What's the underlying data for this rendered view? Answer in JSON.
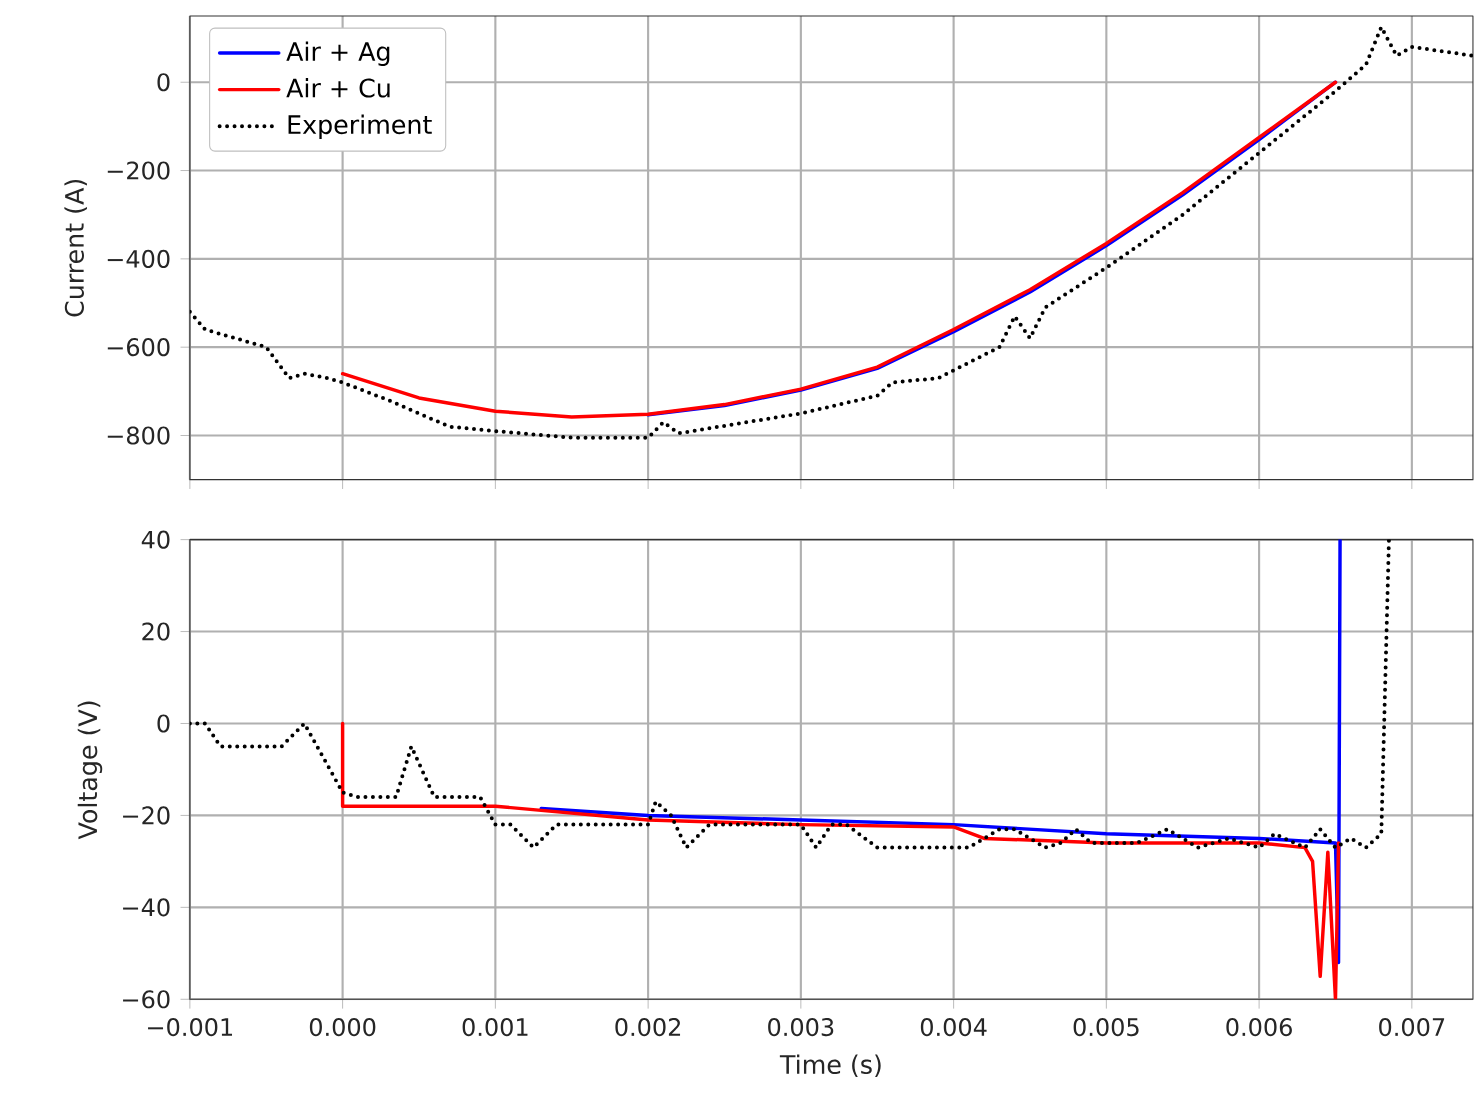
{
  "chart_data": [
    {
      "type": "line",
      "ylabel": "Current (A)",
      "xlim": [
        -0.001,
        0.0074
      ],
      "ylim": [
        -900,
        150
      ],
      "xticks": [
        {
          "value": -0.001,
          "label": null
        },
        {
          "value": 0,
          "label": null
        },
        {
          "value": 0.001,
          "label": null
        },
        {
          "value": 0.002,
          "label": null
        },
        {
          "value": 0.003,
          "label": null
        },
        {
          "value": 0.004,
          "label": null
        },
        {
          "value": 0.005,
          "label": null
        },
        {
          "value": 0.006,
          "label": null
        },
        {
          "value": 0.007,
          "label": null
        }
      ],
      "yticks": [
        {
          "value": -800,
          "label": "−800"
        },
        {
          "value": -600,
          "label": "−600"
        },
        {
          "value": -400,
          "label": "−400"
        },
        {
          "value": -200,
          "label": "−200"
        },
        0
      ],
      "tick_labels": "y",
      "grid": true,
      "legend": "top left",
      "line_style": "solid",
      "marker": "none",
      "series": [
        {
          "name": "Air + Ag",
          "color": "#0000ff",
          "x": [
            0.002,
            0.0025,
            0.003,
            0.0035,
            0.004,
            0.0045,
            0.005,
            0.0055,
            0.006,
            0.0065
          ],
          "values": [
            -753,
            -732,
            -697,
            -648,
            -565,
            -475,
            -370,
            -255,
            -130,
            0
          ]
        },
        {
          "name": "Air + Cu",
          "color": "#ff0000",
          "x": [
            0,
            0.0005,
            0.001,
            0.0015,
            0.002,
            0.0025,
            0.003,
            0.0035,
            0.004,
            0.0045,
            0.005,
            0.0055,
            0.006,
            0.0065
          ],
          "values": [
            -660,
            -715,
            -745,
            -758,
            -752,
            -730,
            -695,
            -645,
            -560,
            -470,
            -365,
            -250,
            -125,
            0
          ]
        },
        {
          "name": "Experiment",
          "color": "#000000",
          "line_style": "dotted",
          "x": [
            -0.001,
            -0.0009,
            -0.0005,
            -0.00035,
            -0.00025,
            -0.0001,
            0,
            0.0003,
            0.0007,
            0.001,
            0.0015,
            0.002,
            0.0021,
            0.0022,
            0.003,
            0.0035,
            0.0036,
            0.0039,
            0.0043,
            0.0044,
            0.0045,
            0.0046,
            0.005,
            0.0055,
            0.006,
            0.0065,
            0.0067,
            0.0068,
            0.0069,
            0.007,
            0.0074
          ],
          "values": [
            -520,
            -560,
            -600,
            -670,
            -660,
            -670,
            -680,
            -720,
            -780,
            -790,
            -805,
            -805,
            -770,
            -795,
            -750,
            -710,
            -680,
            -670,
            -600,
            -530,
            -580,
            -510,
            -420,
            -300,
            -160,
            -20,
            40,
            125,
            60,
            80,
            60
          ]
        }
      ]
    },
    {
      "type": "line",
      "xlabel": "Time (s)",
      "ylabel": "Voltage (V)",
      "xlim": [
        -0.001,
        0.0074
      ],
      "ylim": [
        -60,
        40
      ],
      "xticks": [
        {
          "value": -0.001,
          "label": "−0.001"
        },
        {
          "value": 0,
          "label": "0.000"
        },
        {
          "value": 0.001,
          "label": "0.001"
        },
        {
          "value": 0.002,
          "label": "0.002"
        },
        {
          "value": 0.003,
          "label": "0.003"
        },
        {
          "value": 0.004,
          "label": "0.004"
        },
        {
          "value": 0.005,
          "label": "0.005"
        },
        {
          "value": 0.006,
          "label": "0.006"
        },
        {
          "value": 0.007,
          "label": "0.007"
        }
      ],
      "yticks": [
        {
          "value": -60,
          "label": "−60"
        },
        {
          "value": -40,
          "label": "−40"
        },
        {
          "value": -20,
          "label": "−20"
        },
        0,
        20,
        40
      ],
      "grid": true,
      "line_style": "solid",
      "marker": "none",
      "series": [
        {
          "color": "#0000ff",
          "x": [
            0.0013,
            0.002,
            0.003,
            0.004,
            0.005,
            0.006,
            0.0065,
            0.00652,
            0.00653
          ],
          "values": [
            -18.5,
            -20,
            -21,
            -22,
            -24,
            -25,
            -26,
            -52,
            40
          ]
        },
        {
          "color": "#ff0000",
          "x": [
            0,
            0,
            0.001,
            0.002,
            0.003,
            0.004,
            0.0042,
            0.005,
            0.006,
            0.0063,
            0.00635,
            0.0064,
            0.00645,
            0.0065,
            0.00652
          ],
          "values": [
            0,
            -18,
            -18,
            -21,
            -22,
            -22.5,
            -25,
            -26,
            -26,
            -27,
            -30,
            -55,
            -28,
            -60,
            -26
          ]
        },
        {
          "color": "#000000",
          "line_style": "dotted",
          "x": [
            -0.001,
            -0.0009,
            -0.0008,
            -0.0004,
            -0.00025,
            0,
            0.0001,
            0.00035,
            0.00045,
            0.0006,
            0.0009,
            0.001,
            0.0011,
            0.00125,
            0.0014,
            0.002,
            0.00205,
            0.00215,
            0.00225,
            0.0024,
            0.003,
            0.0031,
            0.0032,
            0.0033,
            0.0035,
            0.0041,
            0.0043,
            0.0044,
            0.0046,
            0.0047,
            0.0048,
            0.0049,
            0.0052,
            0.0054,
            0.0056,
            0.0058,
            0.006,
            0.0061,
            0.0063,
            0.0064,
            0.0065,
            0.0066,
            0.0067,
            0.0068,
            0.00685
          ],
          "values": [
            0,
            0,
            -5,
            -5,
            0,
            -15,
            -16,
            -16,
            -5,
            -16,
            -16,
            -22,
            -22,
            -27,
            -22,
            -22,
            -17,
            -20,
            -27,
            -22,
            -22,
            -27,
            -22,
            -22,
            -27,
            -27,
            -23,
            -23,
            -27,
            -26,
            -23,
            -26,
            -26,
            -23,
            -27,
            -25,
            -27,
            -24,
            -27,
            -23,
            -27,
            -25,
            -27,
            -24,
            40
          ]
        }
      ]
    }
  ]
}
